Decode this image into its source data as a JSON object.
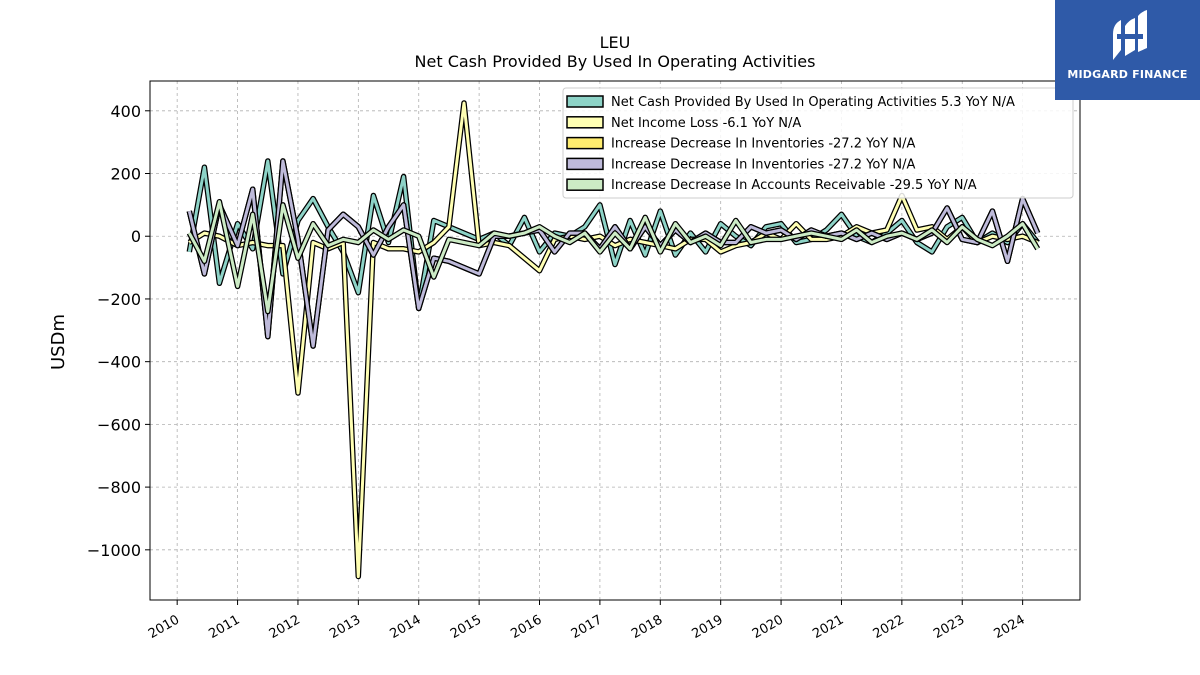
{
  "header": {
    "ticker": "LEU",
    "title": "Net Cash Provided By Used In Operating Activities"
  },
  "logo": {
    "text": "MIDGARD FINANCE",
    "bg_color": "#2f5aa8"
  },
  "chart_data": {
    "type": "line",
    "title": "Net Cash Provided By Used In Operating Activities",
    "ylabel": "USDm",
    "xlabel": "",
    "xlim": [
      2009.55,
      2024.95
    ],
    "ylim": [
      -1160,
      495
    ],
    "x_ticks": [
      2010,
      2011,
      2012,
      2013,
      2014,
      2015,
      2016,
      2017,
      2018,
      2019,
      2020,
      2021,
      2022,
      2023,
      2024
    ],
    "y_ticks": [
      400,
      200,
      0,
      -200,
      -400,
      -600,
      -800,
      -1000
    ],
    "y_tick_labels": [
      "400",
      "200",
      "0",
      "−200",
      "−400",
      "−600",
      "−800",
      "−1000"
    ],
    "grid": true,
    "legend_position": "top-right",
    "series": [
      {
        "name": "Net Cash Provided By Used In Operating Activities  5.3 YoY N/A",
        "color": "#8dd3c7",
        "x": [
          2010.2,
          2010.45,
          2010.7,
          2011.0,
          2011.25,
          2011.5,
          2011.75,
          2012.0,
          2012.25,
          2012.5,
          2012.75,
          2013.0,
          2013.25,
          2013.5,
          2013.75,
          2014.0,
          2014.25,
          2014.5,
          2015.0,
          2015.25,
          2015.5,
          2015.75,
          2016.0,
          2016.25,
          2016.5,
          2016.75,
          2017.0,
          2017.25,
          2017.5,
          2017.75,
          2018.0,
          2018.25,
          2018.5,
          2018.75,
          2019.0,
          2019.25,
          2019.5,
          2019.75,
          2020.0,
          2020.25,
          2020.5,
          2020.75,
          2021.0,
          2021.25,
          2021.5,
          2021.75,
          2022.0,
          2022.25,
          2022.5,
          2022.75,
          2023.0,
          2023.25,
          2023.5,
          2023.75,
          2024.0,
          2024.25
        ],
        "y": [
          -50,
          220,
          -150,
          40,
          -40,
          240,
          -120,
          50,
          120,
          30,
          -50,
          -180,
          130,
          -20,
          190,
          -230,
          50,
          30,
          -10,
          10,
          -30,
          60,
          -50,
          10,
          0,
          30,
          100,
          -90,
          50,
          -60,
          80,
          -60,
          10,
          -50,
          40,
          0,
          -30,
          30,
          40,
          -20,
          -10,
          20,
          70,
          0,
          -20,
          10,
          50,
          -20,
          -50,
          30,
          60,
          -20,
          10,
          -20,
          40,
          -20
        ]
      },
      {
        "name": "Net Income Loss  -6.1 YoY N/A",
        "color": "#ffffb3",
        "x": [
          2010.2,
          2010.45,
          2010.7,
          2011.0,
          2011.25,
          2011.5,
          2011.75,
          2012.0,
          2012.25,
          2012.5,
          2012.75,
          2013.0,
          2013.25,
          2013.5,
          2013.75,
          2014.0,
          2014.25,
          2014.5,
          2014.75,
          2015.0,
          2015.25,
          2015.5,
          2016.0,
          2016.25,
          2016.5,
          2016.75,
          2017.0,
          2017.25,
          2017.5,
          2017.75,
          2018.0,
          2018.25,
          2018.5,
          2018.75,
          2019.0,
          2019.25,
          2019.5,
          2019.75,
          2020.0,
          2020.25,
          2020.5,
          2020.75,
          2021.0,
          2021.25,
          2021.5,
          2021.75,
          2022.0,
          2022.25,
          2022.5,
          2022.75,
          2023.0,
          2023.25,
          2023.5,
          2023.75,
          2024.0,
          2024.25
        ],
        "y": [
          -20,
          10,
          0,
          -30,
          -20,
          -30,
          -30,
          -500,
          -20,
          -40,
          -20,
          -1085,
          -20,
          -40,
          -40,
          -50,
          -20,
          30,
          425,
          -30,
          -20,
          -30,
          -110,
          -10,
          0,
          -10,
          0,
          -30,
          -10,
          -20,
          -30,
          -40,
          -10,
          -10,
          -50,
          -30,
          -20,
          10,
          -10,
          40,
          -10,
          -10,
          0,
          30,
          10,
          20,
          130,
          20,
          30,
          -10,
          30,
          -20,
          0,
          -10,
          0,
          -20
        ]
      },
      {
        "name": "Increase Decrease In Inventories  -27.2 YoY N/A",
        "color": "#ffed6f",
        "x": [
          2010.2,
          2010.45,
          2010.7,
          2011.0,
          2011.25,
          2011.5,
          2011.75,
          2012.0,
          2012.25,
          2012.5,
          2012.75,
          2013.0,
          2013.25,
          2013.5,
          2013.75,
          2014.0,
          2014.25,
          2014.5,
          2015.0,
          2015.25,
          2015.5,
          2015.75,
          2016.0,
          2016.25,
          2016.5,
          2016.75,
          2017.0,
          2017.25,
          2017.5,
          2017.75,
          2018.0,
          2018.25,
          2018.5,
          2018.75,
          2019.0,
          2019.25,
          2019.5,
          2019.75,
          2020.0,
          2020.25,
          2020.5,
          2020.75,
          2021.0,
          2021.25,
          2021.5,
          2021.75,
          2022.0,
          2022.25,
          2022.5,
          2022.75,
          2023.0,
          2023.25,
          2023.5,
          2023.75,
          2024.0,
          2024.25
        ],
        "y": [
          80,
          -120,
          100,
          -30,
          150,
          -320,
          240,
          -10,
          -350,
          20,
          70,
          30,
          -60,
          30,
          100,
          -230,
          -70,
          -80,
          -120,
          0,
          0,
          10,
          20,
          -50,
          10,
          10,
          -40,
          30,
          -40,
          30,
          -30,
          20,
          -20,
          10,
          -20,
          -20,
          30,
          10,
          20,
          -10,
          20,
          0,
          10,
          -10,
          10,
          -10,
          10,
          -10,
          10,
          90,
          -10,
          -20,
          80,
          -80,
          120,
          10
        ]
      },
      {
        "name": "Increase Decrease In Inventories  -27.2 YoY N/A",
        "color": "#bebada",
        "x": [
          2010.2,
          2010.45,
          2010.7,
          2011.0,
          2011.25,
          2011.5,
          2011.75,
          2012.0,
          2012.25,
          2012.5,
          2012.75,
          2013.0,
          2013.25,
          2013.5,
          2013.75,
          2014.0,
          2014.25,
          2014.5,
          2015.0,
          2015.25,
          2015.5,
          2015.75,
          2016.0,
          2016.25,
          2016.5,
          2016.75,
          2017.0,
          2017.25,
          2017.5,
          2017.75,
          2018.0,
          2018.25,
          2018.5,
          2018.75,
          2019.0,
          2019.25,
          2019.5,
          2019.75,
          2020.0,
          2020.25,
          2020.5,
          2020.75,
          2021.0,
          2021.25,
          2021.5,
          2021.75,
          2022.0,
          2022.25,
          2022.5,
          2022.75,
          2023.0,
          2023.25,
          2023.5,
          2023.75,
          2024.0,
          2024.25
        ],
        "y": [
          80,
          -120,
          100,
          -30,
          150,
          -320,
          240,
          -10,
          -350,
          20,
          70,
          30,
          -60,
          30,
          100,
          -230,
          -70,
          -80,
          -120,
          0,
          0,
          10,
          20,
          -50,
          10,
          10,
          -40,
          30,
          -40,
          30,
          -30,
          20,
          -20,
          10,
          -20,
          -20,
          30,
          10,
          20,
          -10,
          20,
          0,
          10,
          -10,
          10,
          -10,
          10,
          -10,
          10,
          90,
          -10,
          -20,
          80,
          -80,
          120,
          10
        ]
      },
      {
        "name": "Increase Decrease In Accounts Receivable  -29.5 YoY N/A",
        "color": "#ccebc5",
        "x": [
          2010.2,
          2010.45,
          2010.7,
          2011.0,
          2011.25,
          2011.5,
          2011.75,
          2012.0,
          2012.25,
          2012.5,
          2012.75,
          2013.0,
          2013.25,
          2013.5,
          2013.75,
          2014.0,
          2014.25,
          2014.5,
          2015.0,
          2015.25,
          2015.5,
          2015.75,
          2016.0,
          2016.25,
          2016.5,
          2016.75,
          2017.0,
          2017.25,
          2017.5,
          2017.75,
          2018.0,
          2018.25,
          2018.5,
          2018.75,
          2019.0,
          2019.25,
          2019.5,
          2019.75,
          2020.0,
          2020.25,
          2020.5,
          2020.75,
          2021.0,
          2021.25,
          2021.5,
          2021.75,
          2022.0,
          2022.25,
          2022.5,
          2022.75,
          2023.0,
          2023.25,
          2023.5,
          2023.75,
          2024.0,
          2024.25
        ],
        "y": [
          10,
          -80,
          110,
          -160,
          70,
          -240,
          100,
          -70,
          40,
          -30,
          -10,
          -20,
          20,
          -10,
          20,
          0,
          -130,
          -10,
          -30,
          10,
          0,
          10,
          30,
          0,
          -20,
          10,
          -50,
          10,
          -40,
          60,
          -50,
          40,
          -20,
          0,
          -30,
          50,
          -20,
          -10,
          -10,
          0,
          10,
          0,
          -10,
          20,
          -20,
          0,
          10,
          -10,
          20,
          -20,
          30,
          -10,
          -30,
          0,
          40,
          -40
        ]
      }
    ]
  }
}
